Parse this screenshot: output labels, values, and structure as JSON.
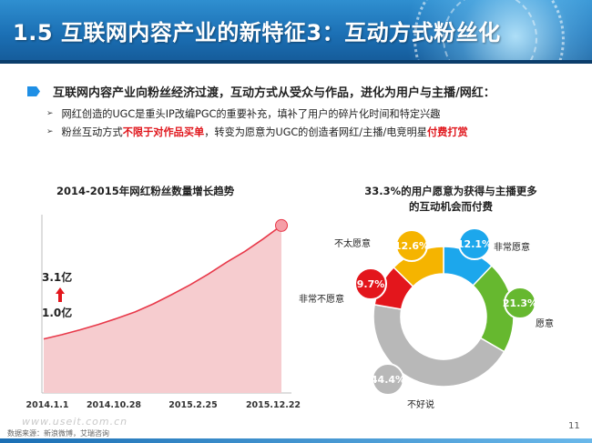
{
  "header": {
    "title": "1.5 互联网内容产业的新特征3：互动方式粉丝化"
  },
  "lead": "互联网内容产业向粉丝经济过渡，互动方式从受众与作品，进化为用户与主播/网红：",
  "bullets": [
    {
      "text": "网红创造的UGC是重头IP改编PGC的重要补充，填补了用户的碎片化时间和特定兴趣"
    },
    {
      "pre": "粉丝互动方式",
      "red1": "不限于对作品买单",
      "mid": "，转变为愿意为UGC的创造者网红/主播/电竞明星",
      "red2": "付费打赏"
    }
  ],
  "line_chart": {
    "title": "2014-2015年网红粉丝数量增长趋势",
    "start_label": "1.0亿",
    "end_label": "3.1亿",
    "x_labels": [
      "2014.1.1",
      "2014.10.28",
      "2015.2.25",
      "2015.12.22"
    ]
  },
  "donut_chart": {
    "title_line1": "33.3%的用户愿意为获得与主播更多",
    "title_line2": "的互动机会而付费"
  },
  "chart_data": [
    {
      "type": "area",
      "title": "2014-2015年网红粉丝数量增长趋势",
      "x": [
        "2014.1.1",
        "2014.10.28",
        "2015.2.25",
        "2015.12.22"
      ],
      "start_value": 1.0,
      "end_value": 3.1,
      "unit": "亿",
      "trend": [
        1.0,
        1.08,
        1.17,
        1.27,
        1.38,
        1.5,
        1.65,
        1.82,
        2.0,
        2.2,
        2.42,
        2.62,
        2.85,
        3.1
      ],
      "color": "#e8394a"
    },
    {
      "type": "pie",
      "title": "33.3%的用户愿意为获得与主播更多的互动机会而付费",
      "slices": [
        {
          "label": "非常愿意",
          "value": 12.1,
          "value_label": "12.1%",
          "color": "#1ca7ec"
        },
        {
          "label": "愿意",
          "value": 21.3,
          "value_label": "21.3%",
          "color": "#66b82f"
        },
        {
          "label": "不好说",
          "value": 44.4,
          "value_label": "44.4%",
          "color": "#b8b8b8"
        },
        {
          "label": "非常不愿意",
          "value": 9.7,
          "value_label": "9.7%",
          "color": "#e3161c"
        },
        {
          "label": "不太愿意",
          "value": 12.6,
          "value_label": "12.6%",
          "color": "#f5b400"
        }
      ]
    }
  ],
  "source": "数据来源：新浪微博，艾瑞咨询",
  "watermark": "www.useit.com.cn",
  "page_number": "11"
}
